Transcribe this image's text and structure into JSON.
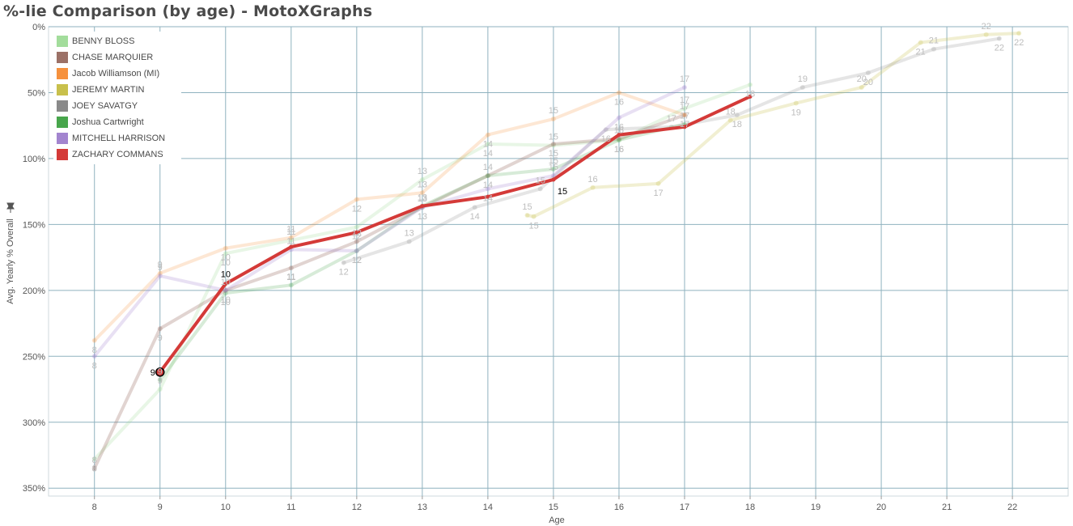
{
  "header": {
    "title": "%-lie Comparison (by age) - MotoXGraphs"
  },
  "pin_icon": "pin-icon",
  "chart_data": {
    "type": "line",
    "title": "%-lie Comparison (by age) - MotoXGraphs",
    "xlabel": "Age",
    "ylabel": "Avg. Yearly % Overall",
    "x_ticks": [
      "8",
      "9",
      "10",
      "11",
      "12",
      "13",
      "14",
      "15",
      "16",
      "17",
      "18",
      "19",
      "20",
      "21",
      "22"
    ],
    "y_ticks": [
      "0%",
      "50%",
      "100%",
      "150%",
      "200%",
      "250%",
      "300%",
      "350%"
    ],
    "xlim": [
      7.3,
      22.85
    ],
    "ylim": [
      0,
      356
    ],
    "y_inverted": true,
    "grid": true,
    "legend_position": "top-left",
    "series": [
      {
        "name": "BENNY BLOSS",
        "color": "#a3dd9c",
        "opacity": 0.25,
        "points": [
          [
            8,
            328,
            "8"
          ],
          [
            9,
            275,
            "9"
          ],
          [
            10,
            172,
            "10"
          ],
          [
            11,
            162,
            "11"
          ],
          [
            12,
            152,
            "12"
          ],
          [
            13,
            116,
            "13"
          ],
          [
            14,
            89,
            "14"
          ],
          [
            15,
            90,
            "15"
          ],
          [
            16,
            86,
            "16"
          ],
          [
            17,
            62,
            "17"
          ],
          [
            18,
            44,
            "18"
          ]
        ]
      },
      {
        "name": "CHASE MARQUIER",
        "color": "#9c7167",
        "opacity": 0.3,
        "points": [
          [
            8,
            335,
            "8"
          ],
          [
            9,
            229,
            "9"
          ],
          [
            10,
            200,
            "10"
          ],
          [
            11,
            183,
            "11"
          ],
          [
            12,
            163,
            "12"
          ],
          [
            13,
            137,
            "13"
          ],
          [
            14,
            113,
            "14"
          ],
          [
            15,
            89,
            "15"
          ],
          [
            16,
            85,
            "16"
          ],
          [
            17,
            67,
            "17"
          ]
        ]
      },
      {
        "name": "Jacob Williamson (MI)",
        "color": "#f6913d",
        "opacity": 0.22,
        "points": [
          [
            8,
            238,
            "8"
          ],
          [
            9,
            187,
            "9"
          ],
          [
            10,
            168,
            "10"
          ],
          [
            11,
            160,
            "11"
          ],
          [
            12,
            131,
            "12"
          ],
          [
            13,
            126,
            "13"
          ],
          [
            14,
            82,
            "14"
          ],
          [
            15,
            70,
            "15"
          ],
          [
            16,
            50,
            "16"
          ],
          [
            17,
            67,
            "17"
          ]
        ]
      },
      {
        "name": "JEREMY MARTIN",
        "color": "#c8c04c",
        "opacity": 0.25,
        "points": [
          [
            14.6,
            143,
            "15"
          ],
          [
            14.7,
            144,
            "15"
          ],
          [
            15.6,
            122,
            "16"
          ],
          [
            16.6,
            119,
            "17"
          ],
          [
            17.7,
            71,
            "18"
          ],
          [
            18.7,
            58,
            "19"
          ],
          [
            19.7,
            46,
            "20"
          ],
          [
            20.6,
            12,
            "21"
          ],
          [
            21.6,
            6,
            "22"
          ],
          [
            22.1,
            5,
            "22"
          ]
        ]
      },
      {
        "name": "JOEY SAVATGY",
        "color": "#8a8a8a",
        "opacity": 0.22,
        "points": [
          [
            11.8,
            179,
            "12"
          ],
          [
            12.8,
            163,
            "13"
          ],
          [
            13.8,
            137,
            "14"
          ],
          [
            14.8,
            123,
            "15"
          ],
          [
            15.8,
            78,
            "16"
          ],
          [
            16.8,
            76,
            "17"
          ],
          [
            17.8,
            67,
            "18"
          ],
          [
            18.8,
            46,
            "19"
          ],
          [
            19.8,
            35,
            "20"
          ],
          [
            20.8,
            17,
            "21"
          ],
          [
            21.8,
            9,
            "22"
          ]
        ]
      },
      {
        "name": "Joshua Cartwright",
        "color": "#48a64c",
        "opacity": 0.22,
        "points": [
          [
            9,
            268,
            "9"
          ],
          [
            10,
            202,
            "10"
          ],
          [
            11,
            196,
            "11"
          ],
          [
            12,
            170,
            "12"
          ],
          [
            13,
            136,
            "13"
          ],
          [
            14,
            113,
            "14"
          ],
          [
            15,
            108,
            "15"
          ],
          [
            16,
            86,
            "16"
          ],
          [
            17,
            74,
            "17"
          ]
        ]
      },
      {
        "name": "MITCHELL HARRISON",
        "color": "#a385cf",
        "opacity": 0.25,
        "points": [
          [
            8,
            250,
            "8"
          ],
          [
            9,
            189,
            "9"
          ],
          [
            10,
            200,
            "10"
          ],
          [
            11,
            169,
            "11"
          ],
          [
            12,
            170,
            "12"
          ],
          [
            13,
            137,
            "13"
          ],
          [
            14,
            123,
            "14"
          ],
          [
            15,
            113,
            "15"
          ],
          [
            16,
            69,
            "16"
          ],
          [
            17,
            46,
            "17"
          ]
        ]
      },
      {
        "name": "ZACHARY COMMANS",
        "color": "#d43a38",
        "opacity": 1,
        "highlight": true,
        "points": [
          [
            9,
            262,
            "9"
          ],
          [
            10,
            195,
            "10"
          ],
          [
            11,
            167,
            "11"
          ],
          [
            12,
            156,
            "12"
          ],
          [
            13,
            136,
            "13"
          ],
          [
            14,
            129,
            "14"
          ],
          [
            15,
            116,
            "15"
          ],
          [
            16,
            82,
            "16"
          ],
          [
            17,
            76,
            "17"
          ],
          [
            18,
            53,
            ""
          ]
        ]
      }
    ],
    "highlight_labels": [
      "9",
      "10",
      "15"
    ]
  }
}
